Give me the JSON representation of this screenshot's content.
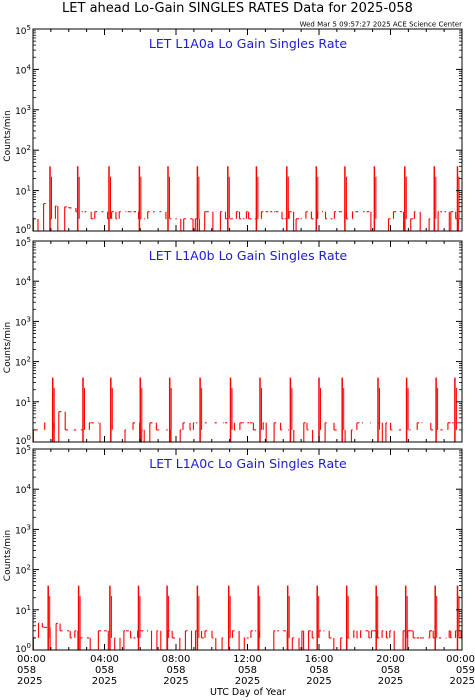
{
  "page": {
    "title": "LET ahead Lo-Gain SINGLES RATES Data for 2025-058",
    "subtitle": "Wed Mar  5 09:57:27 2025 ACE Science Center",
    "xlabel": "UTC Day of Year"
  },
  "colors": {
    "data": "#ff0000",
    "panel_title": "#1c1cd6",
    "axis": "#000000"
  },
  "axes": {
    "ylabel": "Counts/min",
    "y_scale": "log",
    "ylim": [
      1,
      100000
    ],
    "yticks": [
      {
        "base": "10",
        "exp": "0"
      },
      {
        "base": "10",
        "exp": "1"
      },
      {
        "base": "10",
        "exp": "2"
      },
      {
        "base": "10",
        "exp": "3"
      },
      {
        "base": "10",
        "exp": "4"
      },
      {
        "base": "10",
        "exp": "5"
      }
    ],
    "xlim_hours": [
      0,
      24
    ],
    "xticks": [
      {
        "hour": 0,
        "time": "00:00",
        "day": "058",
        "year": "2025"
      },
      {
        "hour": 4,
        "time": "04:00",
        "day": "058",
        "year": "2025"
      },
      {
        "hour": 8,
        "time": "08:00",
        "day": "058",
        "year": "2025"
      },
      {
        "hour": 12,
        "time": "12:00",
        "day": "058",
        "year": "2025"
      },
      {
        "hour": 16,
        "time": "16:00",
        "day": "058",
        "year": "2025"
      },
      {
        "hour": 20,
        "time": "20:00",
        "day": "058",
        "year": "2025"
      },
      {
        "hour": 24,
        "time": "00:00",
        "day": "059",
        "year": "2025"
      }
    ]
  },
  "chart_data": [
    {
      "type": "line",
      "title": "LET L1A0a Lo Gain Singles Rate",
      "spikes_hour": [
        0.95,
        2.5,
        4.25,
        5.95,
        7.55,
        9.2,
        10.9,
        12.5,
        14.2,
        15.85,
        17.45,
        19.1,
        20.8,
        22.45,
        23.75
      ],
      "spike_value": 40,
      "baseline_levels": [
        1,
        2,
        3
      ]
    },
    {
      "type": "line",
      "title": "LET L1A0b Lo Gain Singles Rate",
      "spikes_hour": [
        1.1,
        2.8,
        4.35,
        6.0,
        7.65,
        9.35,
        11.05,
        12.7,
        14.4,
        16.0,
        17.3,
        19.3,
        20.9,
        22.55,
        23.6
      ],
      "spike_value": 40,
      "baseline_levels": [
        1,
        2,
        3
      ]
    },
    {
      "type": "line",
      "title": "LET L1A0c Lo Gain Singles Rate",
      "spikes_hour": [
        0.85,
        2.55,
        4.3,
        5.9,
        7.5,
        9.2,
        10.95,
        12.6,
        14.25,
        15.9,
        17.55,
        19.2,
        20.85,
        22.5,
        23.75
      ],
      "spike_value": 40,
      "baseline_levels": [
        1,
        2,
        3
      ]
    }
  ]
}
